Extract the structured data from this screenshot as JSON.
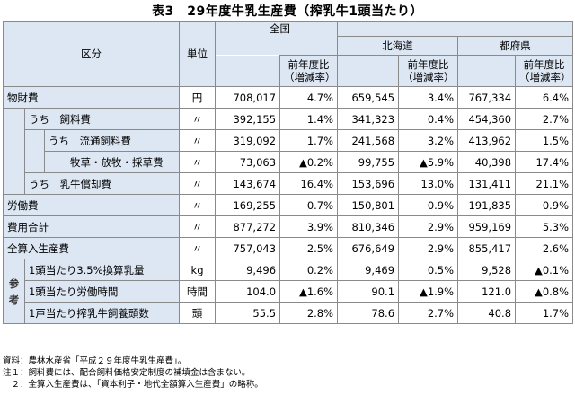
{
  "title": "表3　29年度牛乳生産費（搾乳牛1頭当たり）",
  "header": {
    "category": "区分",
    "unit": "単位",
    "regions": [
      "全国",
      "北海道",
      "都府県"
    ],
    "rate_line1": "前年度比",
    "rate_line2": "（増減率）"
  },
  "rows": [
    {
      "label": "物財費",
      "unit": "円",
      "values": [
        [
          "708,017",
          "4.7%"
        ],
        [
          "659,545",
          "3.4%"
        ],
        [
          "767,334",
          "6.4%"
        ]
      ]
    },
    {
      "label": "うち　飼料費",
      "unit": "〃",
      "values": [
        [
          "392,155",
          "1.4%"
        ],
        [
          "341,323",
          "0.4%"
        ],
        [
          "454,360",
          "2.7%"
        ]
      ]
    },
    {
      "label": "うち　流通飼料費",
      "unit": "〃",
      "values": [
        [
          "319,092",
          "1.7%"
        ],
        [
          "241,568",
          "3.2%"
        ],
        [
          "413,962",
          "1.5%"
        ]
      ]
    },
    {
      "label": "牧草・放牧・採草費",
      "unit": "〃",
      "values": [
        [
          "73,063",
          "▲0.2%"
        ],
        [
          "99,755",
          "▲5.9%"
        ],
        [
          "40,398",
          "17.4%"
        ]
      ]
    },
    {
      "label": "うち　乳牛償却費",
      "unit": "〃",
      "values": [
        [
          "143,674",
          "16.4%"
        ],
        [
          "153,696",
          "13.0%"
        ],
        [
          "131,411",
          "21.1%"
        ]
      ]
    },
    {
      "label": "労働費",
      "unit": "〃",
      "values": [
        [
          "169,255",
          "0.7%"
        ],
        [
          "150,801",
          "0.9%"
        ],
        [
          "191,835",
          "0.9%"
        ]
      ]
    },
    {
      "label": "費用合計",
      "unit": "〃",
      "values": [
        [
          "877,272",
          "3.9%"
        ],
        [
          "810,346",
          "2.9%"
        ],
        [
          "959,169",
          "5.3%"
        ]
      ]
    },
    {
      "label": "全算入生産費",
      "unit": "〃",
      "values": [
        [
          "757,043",
          "2.5%"
        ],
        [
          "676,649",
          "2.9%"
        ],
        [
          "855,417",
          "2.6%"
        ]
      ]
    }
  ],
  "reference": {
    "label_chars": [
      "参",
      "考"
    ],
    "rows": [
      {
        "label": "1頭当たり3.5%換算乳量",
        "unit": "kg",
        "values": [
          [
            "9,496",
            "0.2%"
          ],
          [
            "9,469",
            "0.5%"
          ],
          [
            "9,528",
            "▲0.1%"
          ]
        ]
      },
      {
        "label": "1頭当たり労働時間",
        "unit": "時間",
        "values": [
          [
            "104.0",
            "▲1.6%"
          ],
          [
            "90.1",
            "▲1.9%"
          ],
          [
            "121.0",
            "▲0.8%"
          ]
        ]
      },
      {
        "label": "1戸当たり搾乳牛飼養頭数",
        "unit": "頭",
        "values": [
          [
            "55.5",
            "2.8%"
          ],
          [
            "78.6",
            "2.7%"
          ],
          [
            "40.8",
            "1.7%"
          ]
        ]
      }
    ]
  },
  "notes": [
    "資料：農林水産省「平成２９年度牛乳生産費」。",
    "注１：飼料費には、配合飼料価格安定制度の補填金は含まない。",
    "　２：全算入生産費は、「資本利子・地代全額算入生産費」の略称。"
  ]
}
